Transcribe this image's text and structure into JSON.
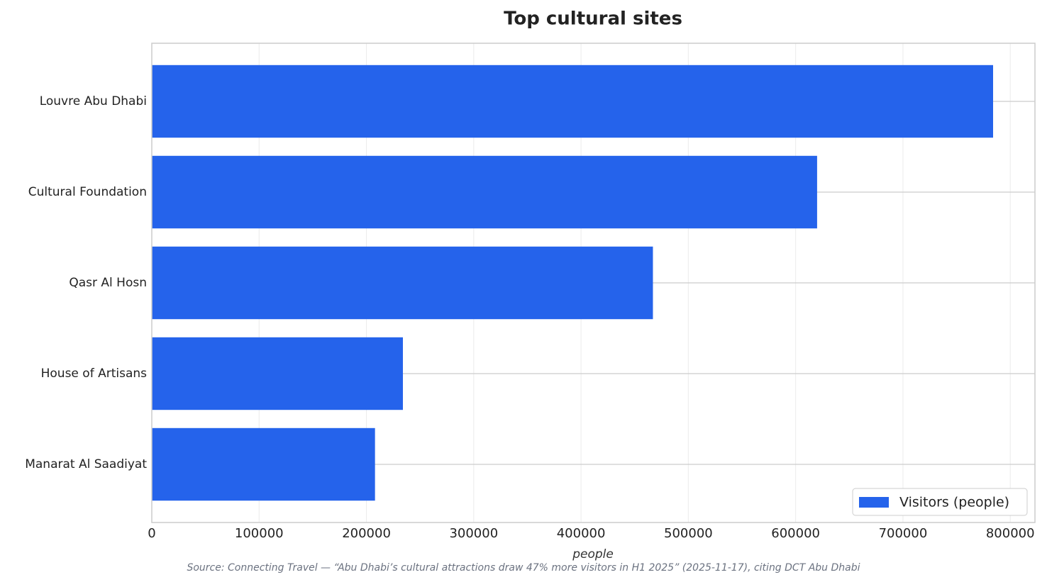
{
  "chart_data": {
    "type": "hbar",
    "title": "Top cultural sites",
    "x_label": "people",
    "source": "Source: Connecting Travel — “Abu Dhabi’s cultural attractions draw 47% more visitors in H1 2025” (2025-11-17), citing DCT Abu Dhabi",
    "categories": [
      "Louvre Abu Dhabi",
      "Cultural Foundation",
      "Qasr Al Hosn",
      "House of Artisans",
      "Manarat Al Saadiyat"
    ],
    "series": [
      {
        "name": "Visitors (people)",
        "color": "#2563eb",
        "values": [
          784000,
          620000,
          467000,
          234000,
          208000
        ]
      }
    ],
    "xlim": [
      0,
      823000
    ],
    "xticks": [
      0,
      100000,
      200000,
      300000,
      400000,
      500000,
      600000,
      700000,
      800000
    ],
    "grid": true,
    "legend": "lower right"
  }
}
